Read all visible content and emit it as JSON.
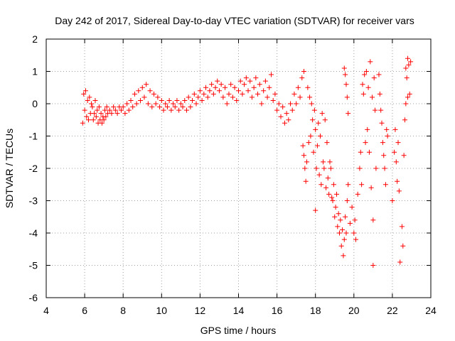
{
  "chart_data": {
    "type": "scatter",
    "title": "Day 242 of 2017, Sidereal Day-to-day VTEC variation (SDTVAR) for receiver vars",
    "xlabel": "GPS time / hours",
    "ylabel": "SDTVAR / TECUs",
    "xlim": [
      4,
      24
    ],
    "ylim": [
      -6,
      2
    ],
    "xticks": [
      "4",
      "6",
      "8",
      "10",
      "12",
      "14",
      "16",
      "18",
      "20",
      "22",
      "24"
    ],
    "yticks": [
      "2",
      "1",
      "0",
      "-1",
      "-2",
      "-3",
      "-4",
      "-5",
      "-6"
    ],
    "grid": true,
    "marker": "+",
    "color": "#ff0000",
    "series": [
      {
        "name": "SDTVAR",
        "points": [
          [
            5.9,
            -0.6
          ],
          [
            5.95,
            0.3
          ],
          [
            6.0,
            -0.2
          ],
          [
            6.05,
            0.4
          ],
          [
            6.1,
            -0.4
          ],
          [
            6.15,
            0.1
          ],
          [
            6.2,
            -0.5
          ],
          [
            6.25,
            0.2
          ],
          [
            6.3,
            -0.3
          ],
          [
            6.35,
            0.0
          ],
          [
            6.4,
            -0.1
          ],
          [
            6.45,
            -0.5
          ],
          [
            6.5,
            -0.3
          ],
          [
            6.55,
            0.1
          ],
          [
            6.6,
            -0.4
          ],
          [
            6.65,
            -0.2
          ],
          [
            6.7,
            -0.6
          ],
          [
            6.75,
            -0.1
          ],
          [
            6.8,
            -0.5
          ],
          [
            6.85,
            -0.3
          ],
          [
            6.9,
            -0.6
          ],
          [
            6.95,
            -0.4
          ],
          [
            7.0,
            -0.5
          ],
          [
            7.05,
            -0.2
          ],
          [
            7.1,
            -0.4
          ],
          [
            7.15,
            -0.1
          ],
          [
            7.2,
            -0.3
          ],
          [
            7.3,
            -0.2
          ],
          [
            7.4,
            -0.3
          ],
          [
            7.5,
            -0.1
          ],
          [
            7.6,
            -0.2
          ],
          [
            7.7,
            -0.3
          ],
          [
            7.8,
            -0.1
          ],
          [
            7.9,
            -0.2
          ],
          [
            8.0,
            -0.1
          ],
          [
            8.1,
            -0.3
          ],
          [
            8.2,
            0.0
          ],
          [
            8.3,
            -0.2
          ],
          [
            8.4,
            0.1
          ],
          [
            8.5,
            -0.1
          ],
          [
            8.6,
            0.3
          ],
          [
            8.7,
            0.0
          ],
          [
            8.8,
            0.4
          ],
          [
            8.9,
            0.1
          ],
          [
            9.0,
            0.5
          ],
          [
            9.1,
            0.2
          ],
          [
            9.2,
            0.6
          ],
          [
            9.3,
            0.0
          ],
          [
            9.4,
            0.4
          ],
          [
            9.5,
            -0.1
          ],
          [
            9.6,
            0.3
          ],
          [
            9.7,
            0.0
          ],
          [
            9.8,
            0.2
          ],
          [
            9.9,
            -0.1
          ],
          [
            10.0,
            0.1
          ],
          [
            10.1,
            -0.2
          ],
          [
            10.2,
            0.0
          ],
          [
            10.3,
            -0.1
          ],
          [
            10.4,
            0.1
          ],
          [
            10.5,
            -0.2
          ],
          [
            10.6,
            0.0
          ],
          [
            10.7,
            -0.1
          ],
          [
            10.8,
            0.1
          ],
          [
            10.9,
            -0.2
          ],
          [
            11.0,
            0.0
          ],
          [
            11.1,
            -0.1
          ],
          [
            11.2,
            0.1
          ],
          [
            11.3,
            -0.2
          ],
          [
            11.4,
            0.2
          ],
          [
            11.5,
            -0.1
          ],
          [
            11.6,
            0.1
          ],
          [
            11.7,
            0.3
          ],
          [
            11.8,
            0.0
          ],
          [
            11.9,
            0.2
          ],
          [
            12.0,
            0.4
          ],
          [
            12.1,
            0.1
          ],
          [
            12.2,
            0.3
          ],
          [
            12.3,
            0.5
          ],
          [
            12.4,
            0.2
          ],
          [
            12.5,
            0.4
          ],
          [
            12.6,
            0.6
          ],
          [
            12.7,
            0.3
          ],
          [
            12.8,
            0.5
          ],
          [
            12.9,
            0.7
          ],
          [
            13.0,
            0.4
          ],
          [
            13.1,
            0.6
          ],
          [
            13.2,
            0.2
          ],
          [
            13.3,
            0.5
          ],
          [
            13.4,
            0.0
          ],
          [
            13.5,
            0.3
          ],
          [
            13.6,
            0.6
          ],
          [
            13.7,
            0.2
          ],
          [
            13.8,
            0.5
          ],
          [
            13.9,
            0.1
          ],
          [
            14.0,
            0.4
          ],
          [
            14.1,
            0.7
          ],
          [
            14.2,
            0.3
          ],
          [
            14.3,
            0.6
          ],
          [
            14.4,
            0.8
          ],
          [
            14.5,
            0.4
          ],
          [
            14.6,
            0.7
          ],
          [
            14.7,
            0.2
          ],
          [
            14.8,
            0.5
          ],
          [
            14.9,
            0.8
          ],
          [
            15.0,
            0.3
          ],
          [
            15.1,
            0.6
          ],
          [
            15.2,
            0.0
          ],
          [
            15.3,
            0.4
          ],
          [
            15.4,
            0.7
          ],
          [
            15.5,
            0.2
          ],
          [
            15.6,
            0.5
          ],
          [
            15.7,
            0.9
          ],
          [
            15.8,
            0.1
          ],
          [
            15.9,
            0.3
          ],
          [
            16.0,
            -0.2
          ],
          [
            16.1,
            0.0
          ],
          [
            16.2,
            -0.4
          ],
          [
            16.3,
            -0.1
          ],
          [
            16.4,
            -0.6
          ],
          [
            16.5,
            -0.3
          ],
          [
            16.6,
            -0.5
          ],
          [
            16.7,
            0.0
          ],
          [
            16.8,
            -0.2
          ],
          [
            16.9,
            0.3
          ],
          [
            17.0,
            0.0
          ],
          [
            17.1,
            0.5
          ],
          [
            17.2,
            0.2
          ],
          [
            17.3,
            0.8
          ],
          [
            17.4,
            1.0
          ],
          [
            17.35,
            -1.3
          ],
          [
            17.4,
            -1.6
          ],
          [
            17.45,
            -2.0
          ],
          [
            17.5,
            -2.4
          ],
          [
            17.55,
            -1.8
          ],
          [
            17.6,
            0.5
          ],
          [
            17.65,
            -1.2
          ],
          [
            17.7,
            0.2
          ],
          [
            17.75,
            -1.0
          ],
          [
            17.8,
            0.0
          ],
          [
            17.85,
            -0.5
          ],
          [
            17.9,
            -1.5
          ],
          [
            17.95,
            -0.2
          ],
          [
            18.0,
            -3.3
          ],
          [
            18.0,
            -0.8
          ],
          [
            18.05,
            -2.0
          ],
          [
            18.1,
            -1.3
          ],
          [
            18.15,
            -0.6
          ],
          [
            18.2,
            -2.2
          ],
          [
            18.25,
            -1.0
          ],
          [
            18.3,
            -2.5
          ],
          [
            18.35,
            -0.3
          ],
          [
            18.4,
            -1.8
          ],
          [
            18.45,
            -2.0
          ],
          [
            18.5,
            -0.5
          ],
          [
            18.55,
            -2.6
          ],
          [
            18.6,
            -1.2
          ],
          [
            18.65,
            -2.3
          ],
          [
            18.7,
            -2.8
          ],
          [
            18.75,
            -1.8
          ],
          [
            18.8,
            -2.0
          ],
          [
            18.85,
            -2.9
          ],
          [
            18.9,
            -3.0
          ],
          [
            18.95,
            -2.5
          ],
          [
            19.0,
            -3.5
          ],
          [
            19.05,
            -3.2
          ],
          [
            19.1,
            -2.8
          ],
          [
            19.15,
            -3.8
          ],
          [
            19.2,
            -3.4
          ],
          [
            19.25,
            -4.0
          ],
          [
            19.3,
            -3.6
          ],
          [
            19.35,
            -4.4
          ],
          [
            19.4,
            -3.9
          ],
          [
            19.45,
            -4.7
          ],
          [
            19.5,
            -4.2
          ],
          [
            19.55,
            -3.5
          ],
          [
            19.6,
            -4.0
          ],
          [
            19.65,
            -3.0
          ],
          [
            19.7,
            -2.5
          ],
          [
            19.5,
            1.1
          ],
          [
            19.55,
            0.9
          ],
          [
            19.6,
            0.6
          ],
          [
            19.65,
            0.2
          ],
          [
            19.7,
            -0.3
          ],
          [
            19.8,
            -3.7
          ],
          [
            19.9,
            -3.2
          ],
          [
            20.0,
            -4.0
          ],
          [
            20.05,
            -3.6
          ],
          [
            20.1,
            -4.2
          ],
          [
            20.2,
            -2.8
          ],
          [
            20.3,
            -2.0
          ],
          [
            20.35,
            -1.5
          ],
          [
            20.4,
            -2.5
          ],
          [
            20.45,
            0.6
          ],
          [
            20.5,
            0.3
          ],
          [
            20.55,
            0.9
          ],
          [
            20.6,
            -1.2
          ],
          [
            20.65,
            1.0
          ],
          [
            20.7,
            -0.8
          ],
          [
            20.75,
            0.5
          ],
          [
            20.8,
            -1.5
          ],
          [
            20.85,
            1.3
          ],
          [
            20.9,
            -2.6
          ],
          [
            20.95,
            0.2
          ],
          [
            21.0,
            -5.0
          ],
          [
            21.0,
            -3.6
          ],
          [
            21.05,
            0.8
          ],
          [
            21.1,
            -0.2
          ],
          [
            21.15,
            -2.0
          ],
          [
            21.3,
            0.9
          ],
          [
            21.35,
            0.3
          ],
          [
            21.4,
            -0.2
          ],
          [
            21.45,
            -0.6
          ],
          [
            21.5,
            -1.2
          ],
          [
            21.55,
            -1.6
          ],
          [
            21.6,
            -2.0
          ],
          [
            21.65,
            -2.5
          ],
          [
            21.7,
            -0.8
          ],
          [
            21.75,
            -1.0
          ],
          [
            22.0,
            -3.0
          ],
          [
            22.1,
            -1.5
          ],
          [
            22.15,
            -0.8
          ],
          [
            22.2,
            -1.8
          ],
          [
            22.25,
            -2.4
          ],
          [
            22.3,
            -1.2
          ],
          [
            22.35,
            -2.7
          ],
          [
            22.4,
            -4.9
          ],
          [
            22.5,
            -3.8
          ],
          [
            22.55,
            -4.4
          ],
          [
            22.6,
            -1.6
          ],
          [
            22.65,
            -0.5
          ],
          [
            22.7,
            0.0
          ],
          [
            22.75,
            0.8
          ],
          [
            22.8,
            1.4
          ],
          [
            22.85,
            1.2
          ],
          [
            22.9,
            0.3
          ],
          [
            22.95,
            1.3
          ],
          [
            22.7,
            1.1
          ],
          [
            22.8,
            0.2
          ]
        ]
      }
    ]
  }
}
